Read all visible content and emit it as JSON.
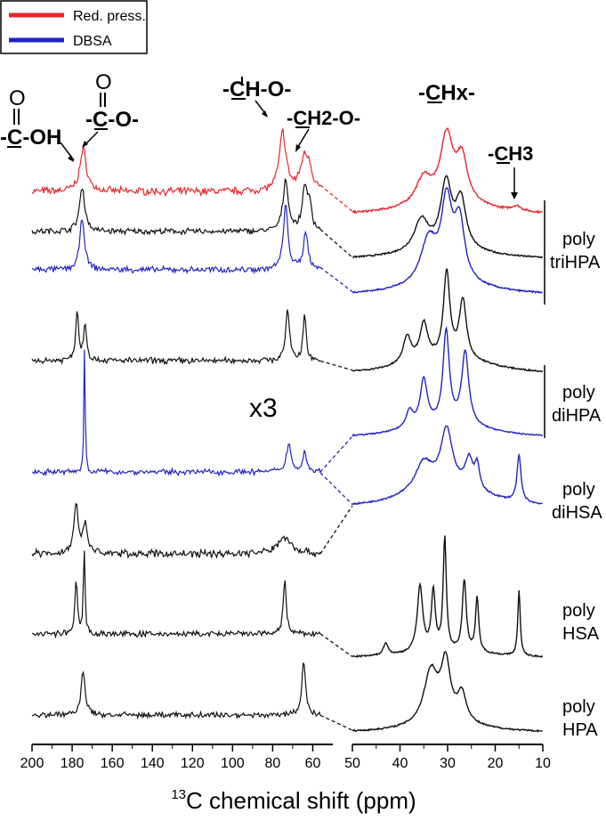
{
  "chart_data": {
    "type": "line",
    "title": "",
    "xlabel_sup": "13",
    "xlabel_rest": "C chemical shift (ppm)",
    "x_axis": {
      "reversed": true,
      "broken": true,
      "left_range": [
        200,
        50
      ],
      "right_range": [
        50,
        10
      ],
      "left_ticks": [
        "200",
        "180",
        "160",
        "140",
        "120",
        "100",
        "80",
        "60"
      ],
      "right_ticks": [
        "50",
        "40",
        "30",
        "20",
        "10"
      ]
    },
    "legend": {
      "position": "top-left",
      "items": [
        {
          "label": "Red. press.",
          "color": "#e8262b"
        },
        {
          "label": "DBSA",
          "color": "#2323c8"
        }
      ]
    },
    "magnification_label": "x3",
    "peak_annotations": [
      {
        "id": "cooh",
        "o_label": "O",
        "label": "-C-OH"
      },
      {
        "id": "coo",
        "o_label": "O",
        "label": "-C-O-"
      },
      {
        "id": "cho",
        "label": "-CH-O-"
      },
      {
        "id": "ch2o",
        "label": "-CH2-O-"
      },
      {
        "id": "chx",
        "label": "-CHx-"
      },
      {
        "id": "ch3",
        "label": "-CH3"
      }
    ],
    "group_labels": [
      {
        "line1": "poly",
        "line2": "triHPA"
      },
      {
        "line1": "poly",
        "line2": "diHPA"
      },
      {
        "line1": "poly",
        "line2": "diHSA"
      },
      {
        "line1": "poly",
        "line2": "HSA"
      },
      {
        "line1": "poly",
        "line2": "HPA"
      }
    ],
    "series": [
      {
        "name": "",
        "color": "#e8262b",
        "noise": 0.05,
        "left_amp": 1.0,
        "left_peaks": [
          [
            174.5,
            2.0,
            0.85
          ],
          [
            75.0,
            2.0,
            1.2
          ],
          [
            64.5,
            2.2,
            0.55
          ],
          [
            62.0,
            2.0,
            0.45
          ]
        ],
        "right_peaks": [
          [
            35.0,
            2.0,
            0.55
          ],
          [
            30.2,
            1.6,
            1.35
          ],
          [
            27.0,
            1.5,
            0.9
          ],
          [
            15.5,
            1.2,
            0.1
          ]
        ],
        "right_base": 0.15
      },
      {
        "name": "",
        "color": "#111111",
        "noise": 0.04,
        "left_amp": 1.0,
        "left_peaks": [
          [
            175.0,
            1.6,
            0.9
          ],
          [
            73.5,
            1.6,
            1.05
          ],
          [
            64.0,
            1.4,
            0.9
          ],
          [
            61.5,
            1.2,
            0.5
          ]
        ],
        "right_peaks": [
          [
            35.5,
            1.8,
            0.65
          ],
          [
            30.3,
            1.4,
            1.35
          ],
          [
            27.2,
            1.3,
            1.0
          ]
        ],
        "right_base": 0.12
      },
      {
        "name": "",
        "color": "#2323c8",
        "noise": 0.04,
        "left_amp": 1.0,
        "left_peaks": [
          [
            175.0,
            1.4,
            1.05
          ],
          [
            73.5,
            1.4,
            1.3
          ],
          [
            63.5,
            1.3,
            0.8
          ]
        ],
        "right_peaks": [
          [
            34.0,
            2.0,
            0.9
          ],
          [
            30.2,
            1.4,
            1.6
          ],
          [
            27.5,
            1.3,
            1.2
          ]
        ],
        "right_base": 0.15
      },
      {
        "name": "",
        "color": "#111111",
        "noise": 0.04,
        "left_amp": 1.0,
        "left_peaks": [
          [
            177.5,
            0.9,
            1.0
          ],
          [
            173.5,
            0.9,
            0.75
          ],
          [
            72.5,
            1.2,
            1.0
          ],
          [
            64.0,
            0.9,
            0.95
          ]
        ],
        "right_peaks": [
          [
            38.5,
            1.0,
            0.55
          ],
          [
            35.0,
            1.0,
            0.75
          ],
          [
            30.2,
            0.8,
            1.75
          ],
          [
            26.8,
            0.9,
            1.2
          ]
        ],
        "right_base": 0.25
      },
      {
        "name": "",
        "color": "#2323c8",
        "noise": 0.03,
        "left_amp": 1.0,
        "left_peaks": [
          [
            174.0,
            1.0,
            0.2
          ]
        ],
        "right_peaks": [
          [
            38.0,
            0.9,
            0.35
          ],
          [
            35.0,
            0.9,
            0.95
          ],
          [
            30.3,
            0.8,
            1.9
          ],
          [
            26.3,
            0.9,
            1.5
          ]
        ],
        "right_base": 0.2
      },
      {
        "name": "",
        "color": "#2323c8",
        "noise": 0.04,
        "left_amp": 1.0,
        "left_peaks": [
          [
            173.8,
            0.35,
            2.7
          ],
          [
            72.0,
            1.3,
            0.6
          ],
          [
            64.0,
            1.0,
            0.45
          ]
        ],
        "right_peaks": [
          [
            35.0,
            2.2,
            0.6
          ],
          [
            30.2,
            1.5,
            1.2
          ],
          [
            25.5,
            1.0,
            0.6
          ],
          [
            23.8,
            0.6,
            0.5
          ],
          [
            15.0,
            0.5,
            0.95
          ]
        ],
        "right_base": 0.3
      },
      {
        "name": "",
        "color": "#111111",
        "noise": 0.05,
        "left_amp": 1.0,
        "left_peaks": [
          [
            178.0,
            1.2,
            1.05
          ],
          [
            173.5,
            1.5,
            0.55
          ],
          [
            74.0,
            4.0,
            0.35
          ]
        ],
        "right_peaks": [],
        "right_base": 0.0
      },
      {
        "name": "",
        "color": "#111111",
        "noise": 0.04,
        "left_amp": 1.0,
        "left_peaks": [
          [
            178.0,
            0.7,
            1.1
          ],
          [
            174.0,
            0.5,
            1.75
          ],
          [
            74.0,
            0.9,
            1.1
          ]
        ],
        "right_peaks": [
          [
            43.0,
            0.6,
            0.25
          ],
          [
            35.8,
            0.7,
            1.35
          ],
          [
            33.0,
            0.5,
            1.2
          ],
          [
            30.6,
            0.4,
            2.3
          ],
          [
            26.5,
            0.5,
            1.45
          ],
          [
            23.8,
            0.4,
            1.1
          ],
          [
            15.0,
            0.3,
            1.35
          ]
        ],
        "right_base": 0.1
      },
      {
        "name": "",
        "color": "#111111",
        "noise": 0.04,
        "left_amp": 1.0,
        "left_peaks": [
          [
            174.5,
            1.2,
            0.9
          ],
          [
            64.5,
            1.1,
            1.1
          ]
        ],
        "right_peaks": [
          [
            33.5,
            1.8,
            1.1
          ],
          [
            30.4,
            1.2,
            1.2
          ],
          [
            27.0,
            1.2,
            0.6
          ]
        ],
        "right_base": 0.1
      }
    ]
  }
}
